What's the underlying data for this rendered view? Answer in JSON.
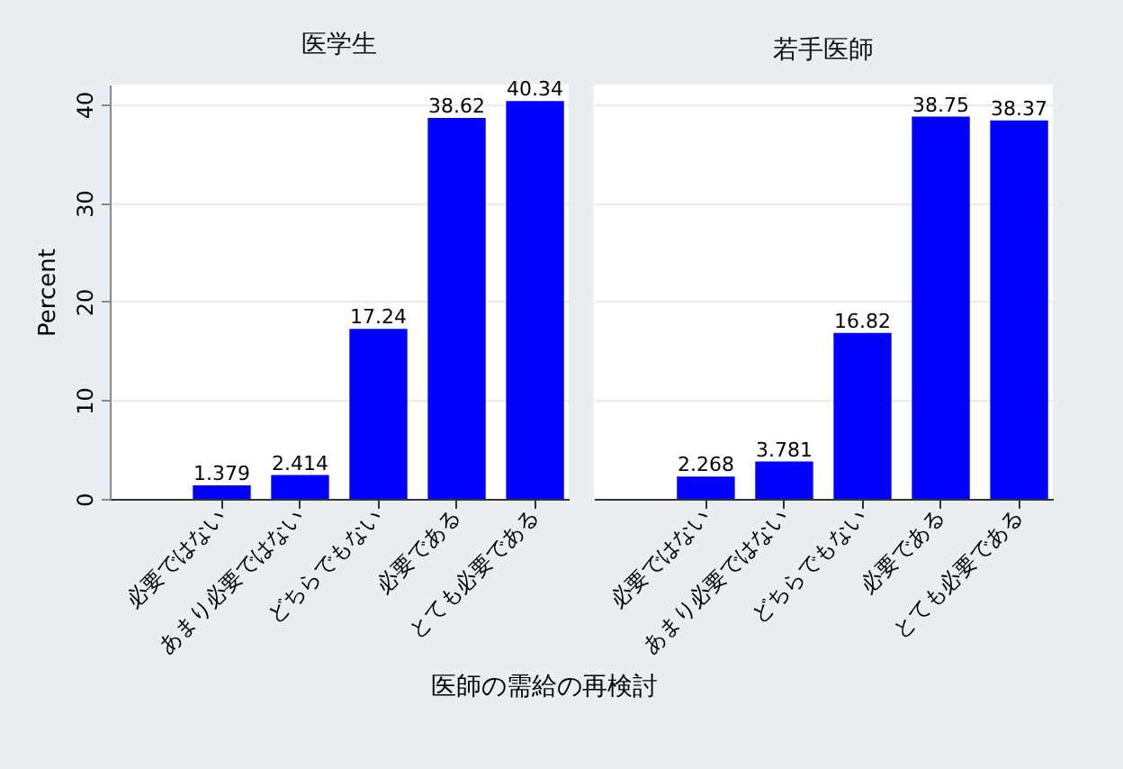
{
  "chart_data": [
    {
      "type": "bar",
      "title": "医学生",
      "ylabel": "Percent",
      "xlabel": "医師の需給の再検討",
      "categories": [
        "必要ではない",
        "あまり必要ではない",
        "どちらでもない",
        "必要である",
        "とても必要である"
      ],
      "values": [
        1.379,
        2.414,
        17.24,
        38.62,
        40.34
      ],
      "color": "#0000ff",
      "data_labels": true,
      "ylim": [
        0,
        42
      ],
      "yticks": [
        0,
        10,
        20,
        30,
        40
      ],
      "grid": "y"
    },
    {
      "type": "bar",
      "title": "若手医師",
      "categories": [
        "必要ではない",
        "あまり必要ではない",
        "どちらでもない",
        "必要である",
        "とても必要である"
      ],
      "values": [
        2.268,
        3.781,
        16.82,
        38.75,
        38.37
      ],
      "color": "#0000ff",
      "data_labels": true,
      "ylim": [
        0,
        42
      ],
      "yticks": [
        0,
        10,
        20,
        30,
        40
      ],
      "grid": "y",
      "tick_labels": "x"
    }
  ]
}
